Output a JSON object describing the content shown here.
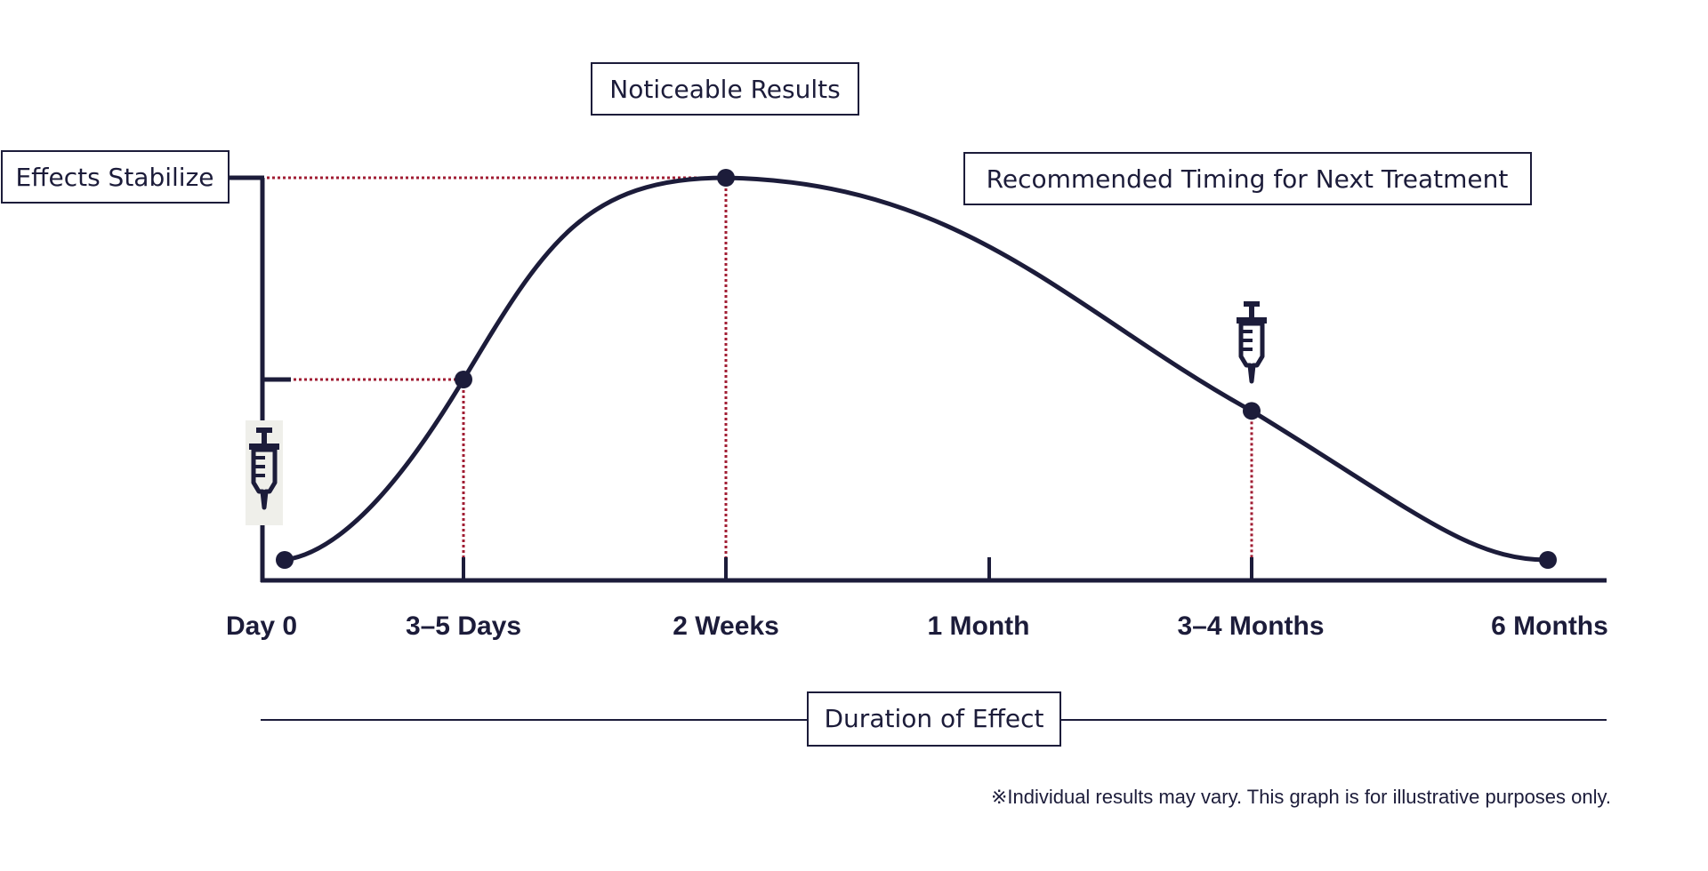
{
  "colors": {
    "navy": "#1c1c3a",
    "guide_red": "#a11d33",
    "icon_bg": "#efefea"
  },
  "chart_data": {
    "type": "line",
    "title": "",
    "xlabel": "Duration of Effect",
    "ylabel": "",
    "categories": [
      "Day 0",
      "3–5 Days",
      "2 Weeks",
      "1 Month",
      "3–4 Months",
      "6 Months"
    ],
    "y_levels": {
      "effects_stabilize": 1.0,
      "early_effect": 0.5
    },
    "series": [
      {
        "points": [
          {
            "x": "Day 0",
            "y": 0.05
          },
          {
            "x": "3–5 Days",
            "y": 0.5
          },
          {
            "x": "2 Weeks",
            "y": 1.0
          },
          {
            "x": "3–4 Months",
            "y": 0.44
          },
          {
            "x": "6 Months",
            "y": 0.05
          }
        ]
      }
    ],
    "annotations": {
      "effects_stabilize": "Effects Stabilize",
      "noticeable_results": "Noticeable Results",
      "recommended_timing": "Recommended Timing for Next Treatment",
      "duration": "Duration of Effect"
    },
    "treatment_icons": [
      "syringe-icon",
      "syringe-icon"
    ],
    "footnote": "※Individual results may vary. This graph is for illustrative purposes only.",
    "grid": false
  }
}
